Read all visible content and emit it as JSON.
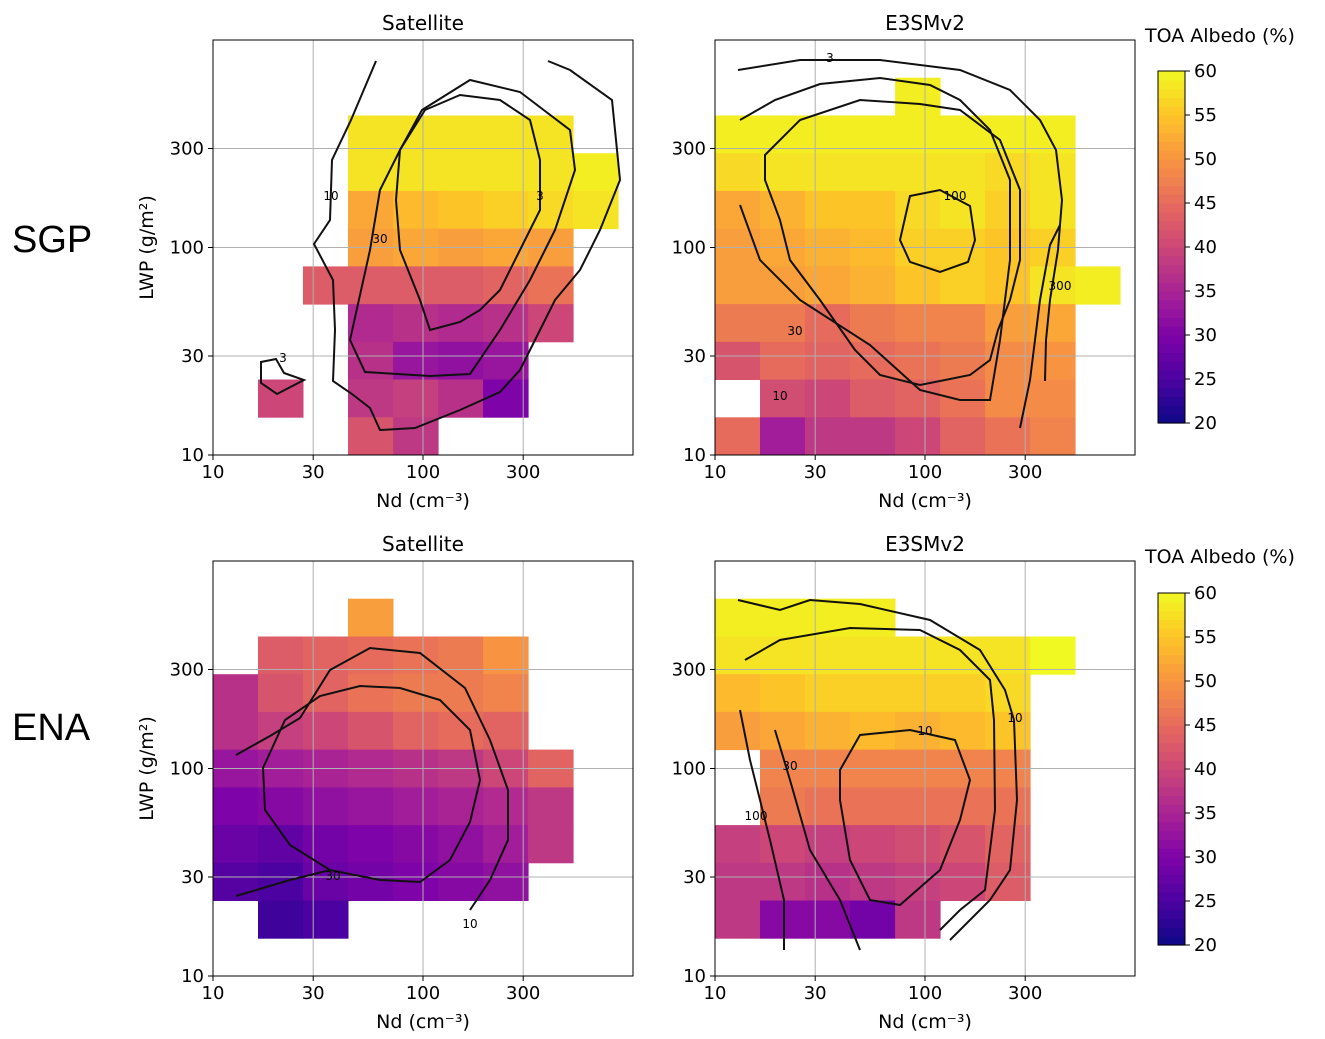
{
  "figure": {
    "row_labels": [
      "SGP",
      "ENA"
    ],
    "colorbar": {
      "label": "TOA Albedo (%)",
      "range": [
        20,
        60
      ],
      "ticks": [
        "20",
        "25",
        "30",
        "35",
        "40",
        "45",
        "50",
        "55",
        "60"
      ],
      "colormap": "plasma"
    }
  },
  "chart_data": [
    {
      "type": "heatmap",
      "row": "SGP",
      "title": "Satellite",
      "xlabel": "Nd (cm⁻³)",
      "ylabel": "LWP (g/m²)",
      "x_scale": "log",
      "y_scale": "log",
      "xlim": [
        10,
        1000
      ],
      "ylim": [
        10,
        1000
      ],
      "xticks": [
        "10",
        "30",
        "100",
        "300"
      ],
      "yticks": [
        "10",
        "30",
        "100",
        "300"
      ],
      "grid": true,
      "cell_albedo_pct": [
        [
          0,
          0,
          0,
          0,
          0,
          0,
          0,
          0,
          0
        ],
        [
          0,
          0,
          0,
          0,
          0,
          0,
          0,
          0,
          0
        ],
        [
          0,
          0,
          0,
          58,
          58,
          58,
          58,
          58,
          0
        ],
        [
          0,
          0,
          0,
          58,
          58,
          58,
          58,
          58,
          59
        ],
        [
          0,
          0,
          0,
          52,
          54,
          55,
          56,
          57,
          58
        ],
        [
          0,
          0,
          0,
          51,
          52,
          51,
          52,
          51,
          0
        ],
        [
          0,
          0,
          43,
          43,
          43,
          43,
          44,
          46,
          0
        ],
        [
          0,
          0,
          0,
          36,
          37,
          36,
          37,
          40,
          0
        ],
        [
          0,
          0,
          0,
          37,
          33,
          32,
          33,
          0,
          0
        ],
        [
          0,
          40,
          0,
          38,
          39,
          37,
          30,
          0,
          0
        ],
        [
          0,
          0,
          0,
          42,
          38,
          0,
          0,
          0,
          0
        ]
      ],
      "contours": [
        {
          "label": "3"
        },
        {
          "label": "10"
        },
        {
          "label": "30"
        },
        {
          "label": "3"
        }
      ]
    },
    {
      "type": "heatmap",
      "row": "SGP",
      "title": "E3SMv2",
      "xlabel": "Nd (cm⁻³)",
      "ylabel": "",
      "x_scale": "log",
      "y_scale": "log",
      "xlim": [
        10,
        1000
      ],
      "ylim": [
        10,
        1000
      ],
      "xticks": [
        "10",
        "30",
        "100",
        "300"
      ],
      "yticks": [
        "10",
        "30",
        "100",
        "300"
      ],
      "grid": true,
      "cell_albedo_pct": [
        [
          0,
          0,
          0,
          0,
          0,
          0,
          0,
          0,
          0
        ],
        [
          0,
          0,
          0,
          0,
          59,
          0,
          0,
          0,
          0
        ],
        [
          59,
          59,
          59,
          59,
          59,
          59,
          59,
          59,
          0
        ],
        [
          57,
          58,
          58,
          58,
          58,
          58,
          57,
          58,
          0
        ],
        [
          52,
          53,
          55,
          55,
          57,
          58,
          56,
          58,
          0
        ],
        [
          51,
          52,
          53,
          54,
          56,
          56,
          55,
          56,
          0
        ],
        [
          51,
          51,
          52,
          53,
          55,
          56,
          55,
          58,
          59
        ],
        [
          47,
          47,
          45,
          47,
          48,
          48,
          51,
          52,
          0
        ],
        [
          42,
          45,
          44,
          45,
          46,
          47,
          49,
          50,
          0
        ],
        [
          0,
          41,
          40,
          43,
          44,
          46,
          49,
          49,
          0
        ],
        [
          45,
          34,
          38,
          38,
          40,
          44,
          46,
          48,
          0
        ]
      ],
      "contours": [
        {
          "label": "3"
        },
        {
          "label": "10"
        },
        {
          "label": "30"
        },
        {
          "label": "100"
        },
        {
          "label": "300"
        }
      ]
    },
    {
      "type": "heatmap",
      "row": "ENA",
      "title": "Satellite",
      "xlabel": "Nd (cm⁻³)",
      "ylabel": "LWP (g/m²)",
      "x_scale": "log",
      "y_scale": "log",
      "xlim": [
        10,
        1000
      ],
      "ylim": [
        10,
        1000
      ],
      "xticks": [
        "10",
        "30",
        "100",
        "300"
      ],
      "yticks": [
        "10",
        "30",
        "100",
        "300"
      ],
      "grid": true,
      "cell_albedo_pct": [
        [
          0,
          0,
          0,
          0,
          0,
          0,
          0,
          0,
          0
        ],
        [
          0,
          0,
          0,
          51,
          0,
          0,
          0,
          0,
          0
        ],
        [
          0,
          43,
          44,
          45,
          46,
          47,
          50,
          0,
          0
        ],
        [
          37,
          42,
          44,
          46,
          47,
          47,
          48,
          0,
          0
        ],
        [
          37,
          39,
          40,
          42,
          44,
          45,
          44,
          0,
          0
        ],
        [
          33,
          34,
          35,
          36,
          37,
          38,
          40,
          44,
          0
        ],
        [
          30,
          31,
          32,
          33,
          34,
          35,
          36,
          38,
          0
        ],
        [
          28,
          27,
          29,
          30,
          31,
          32,
          34,
          38,
          0
        ],
        [
          26,
          25,
          28,
          29,
          30,
          31,
          32,
          0,
          0
        ],
        [
          0,
          24,
          25,
          0,
          0,
          0,
          0,
          0,
          0
        ],
        [
          0,
          0,
          0,
          0,
          0,
          0,
          0,
          0,
          0
        ]
      ],
      "contours": [
        {
          "label": "10"
        },
        {
          "label": "30"
        }
      ]
    },
    {
      "type": "heatmap",
      "row": "ENA",
      "title": "E3SMv2",
      "xlabel": "Nd (cm⁻³)",
      "ylabel": "",
      "x_scale": "log",
      "y_scale": "log",
      "xlim": [
        10,
        1000
      ],
      "ylim": [
        10,
        1000
      ],
      "xticks": [
        "10",
        "30",
        "100",
        "300"
      ],
      "yticks": [
        "10",
        "30",
        "100",
        "300"
      ],
      "grid": true,
      "cell_albedo_pct": [
        [
          0,
          0,
          0,
          0,
          0,
          0,
          0,
          0,
          0
        ],
        [
          59,
          59,
          59,
          59,
          0,
          0,
          0,
          0,
          0
        ],
        [
          58,
          58,
          58,
          58,
          58,
          58,
          58,
          60,
          0
        ],
        [
          54,
          55,
          56,
          56,
          56,
          56,
          57,
          0,
          0
        ],
        [
          51,
          52,
          53,
          54,
          53,
          54,
          55,
          0,
          0
        ],
        [
          0,
          48,
          48,
          48,
          48,
          48,
          48,
          0,
          0
        ],
        [
          0,
          47,
          46,
          46,
          46,
          46,
          46,
          0,
          0
        ],
        [
          39,
          40,
          39,
          40,
          41,
          42,
          44,
          0,
          0
        ],
        [
          38,
          38,
          37,
          38,
          39,
          40,
          43,
          0,
          0
        ],
        [
          38,
          31,
          31,
          29,
          38,
          0,
          0,
          0,
          0
        ],
        [
          0,
          0,
          0,
          0,
          0,
          0,
          0,
          0,
          0
        ]
      ],
      "contours": [
        {
          "label": "10"
        },
        {
          "label": "30"
        },
        {
          "label": "100"
        },
        {
          "label": "10"
        }
      ]
    }
  ]
}
